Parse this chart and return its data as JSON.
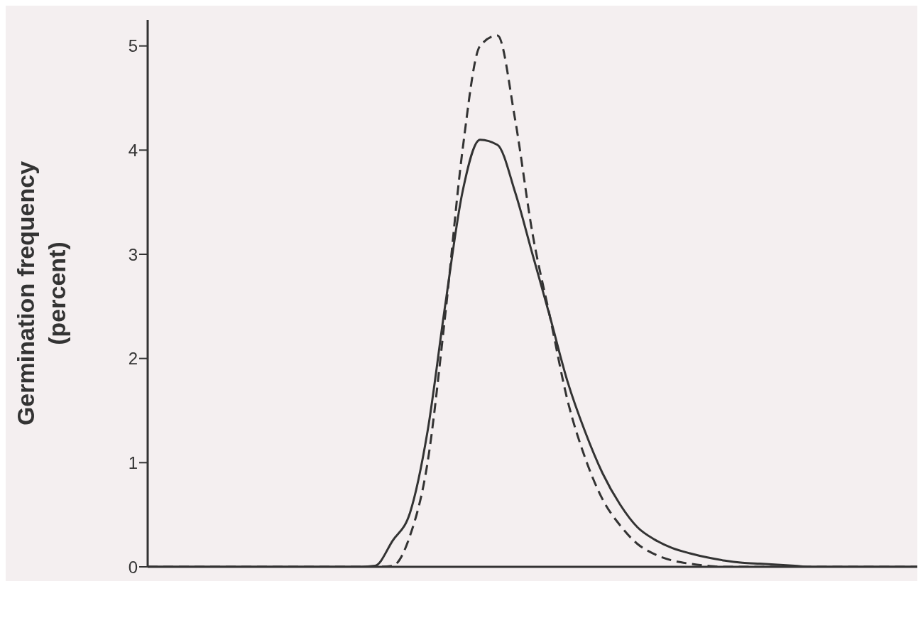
{
  "chart_data": {
    "type": "line",
    "ylabel": "Germination frequency (percent)",
    "categories": [
      null,
      null,
      null,
      null,
      null,
      null,
      null,
      null,
      null,
      null,
      null,
      null,
      null,
      null,
      null,
      null,
      null,
      null,
      null,
      null,
      null,
      null,
      null,
      null,
      null,
      null,
      null,
      null,
      null,
      null,
      null,
      null,
      null,
      null,
      null,
      null,
      null,
      null,
      null,
      null,
      null,
      null,
      null,
      null,
      null
    ],
    "series": [
      {
        "color": "#333333",
        "line_style": "solid",
        "values": [
          0,
          0,
          0,
          0,
          0,
          0,
          0,
          0,
          0,
          0,
          0,
          0,
          0,
          0.01,
          0.25,
          0.52,
          1.3,
          2.5,
          3.6,
          4.1,
          4.05,
          3.6,
          3.0,
          2.4,
          1.78,
          1.3,
          0.9,
          0.6,
          0.38,
          0.26,
          0.18,
          0.13,
          0.09,
          0.06,
          0.04,
          0.03,
          0.02,
          0.01,
          0,
          0,
          0,
          0,
          0,
          0,
          0
        ]
      },
      {
        "color": "#333333",
        "line_style": "dashed",
        "values": [
          0,
          0,
          0,
          0,
          0,
          0,
          0,
          0,
          0,
          0,
          0,
          0,
          0,
          0,
          0.01,
          0.3,
          1.0,
          2.4,
          4.0,
          5.0,
          5.1,
          4.3,
          3.2,
          2.4,
          1.6,
          1.05,
          0.65,
          0.4,
          0.22,
          0.12,
          0.06,
          0.03,
          0.01,
          0,
          0,
          0,
          0,
          0,
          0,
          0,
          0,
          0,
          0,
          0,
          0
        ]
      }
    ],
    "ylim": [
      0,
      5.25
    ],
    "yticks": [
      0,
      1,
      2,
      3,
      4,
      5
    ],
    "grid": false,
    "marker": "none",
    "legend": false
  }
}
